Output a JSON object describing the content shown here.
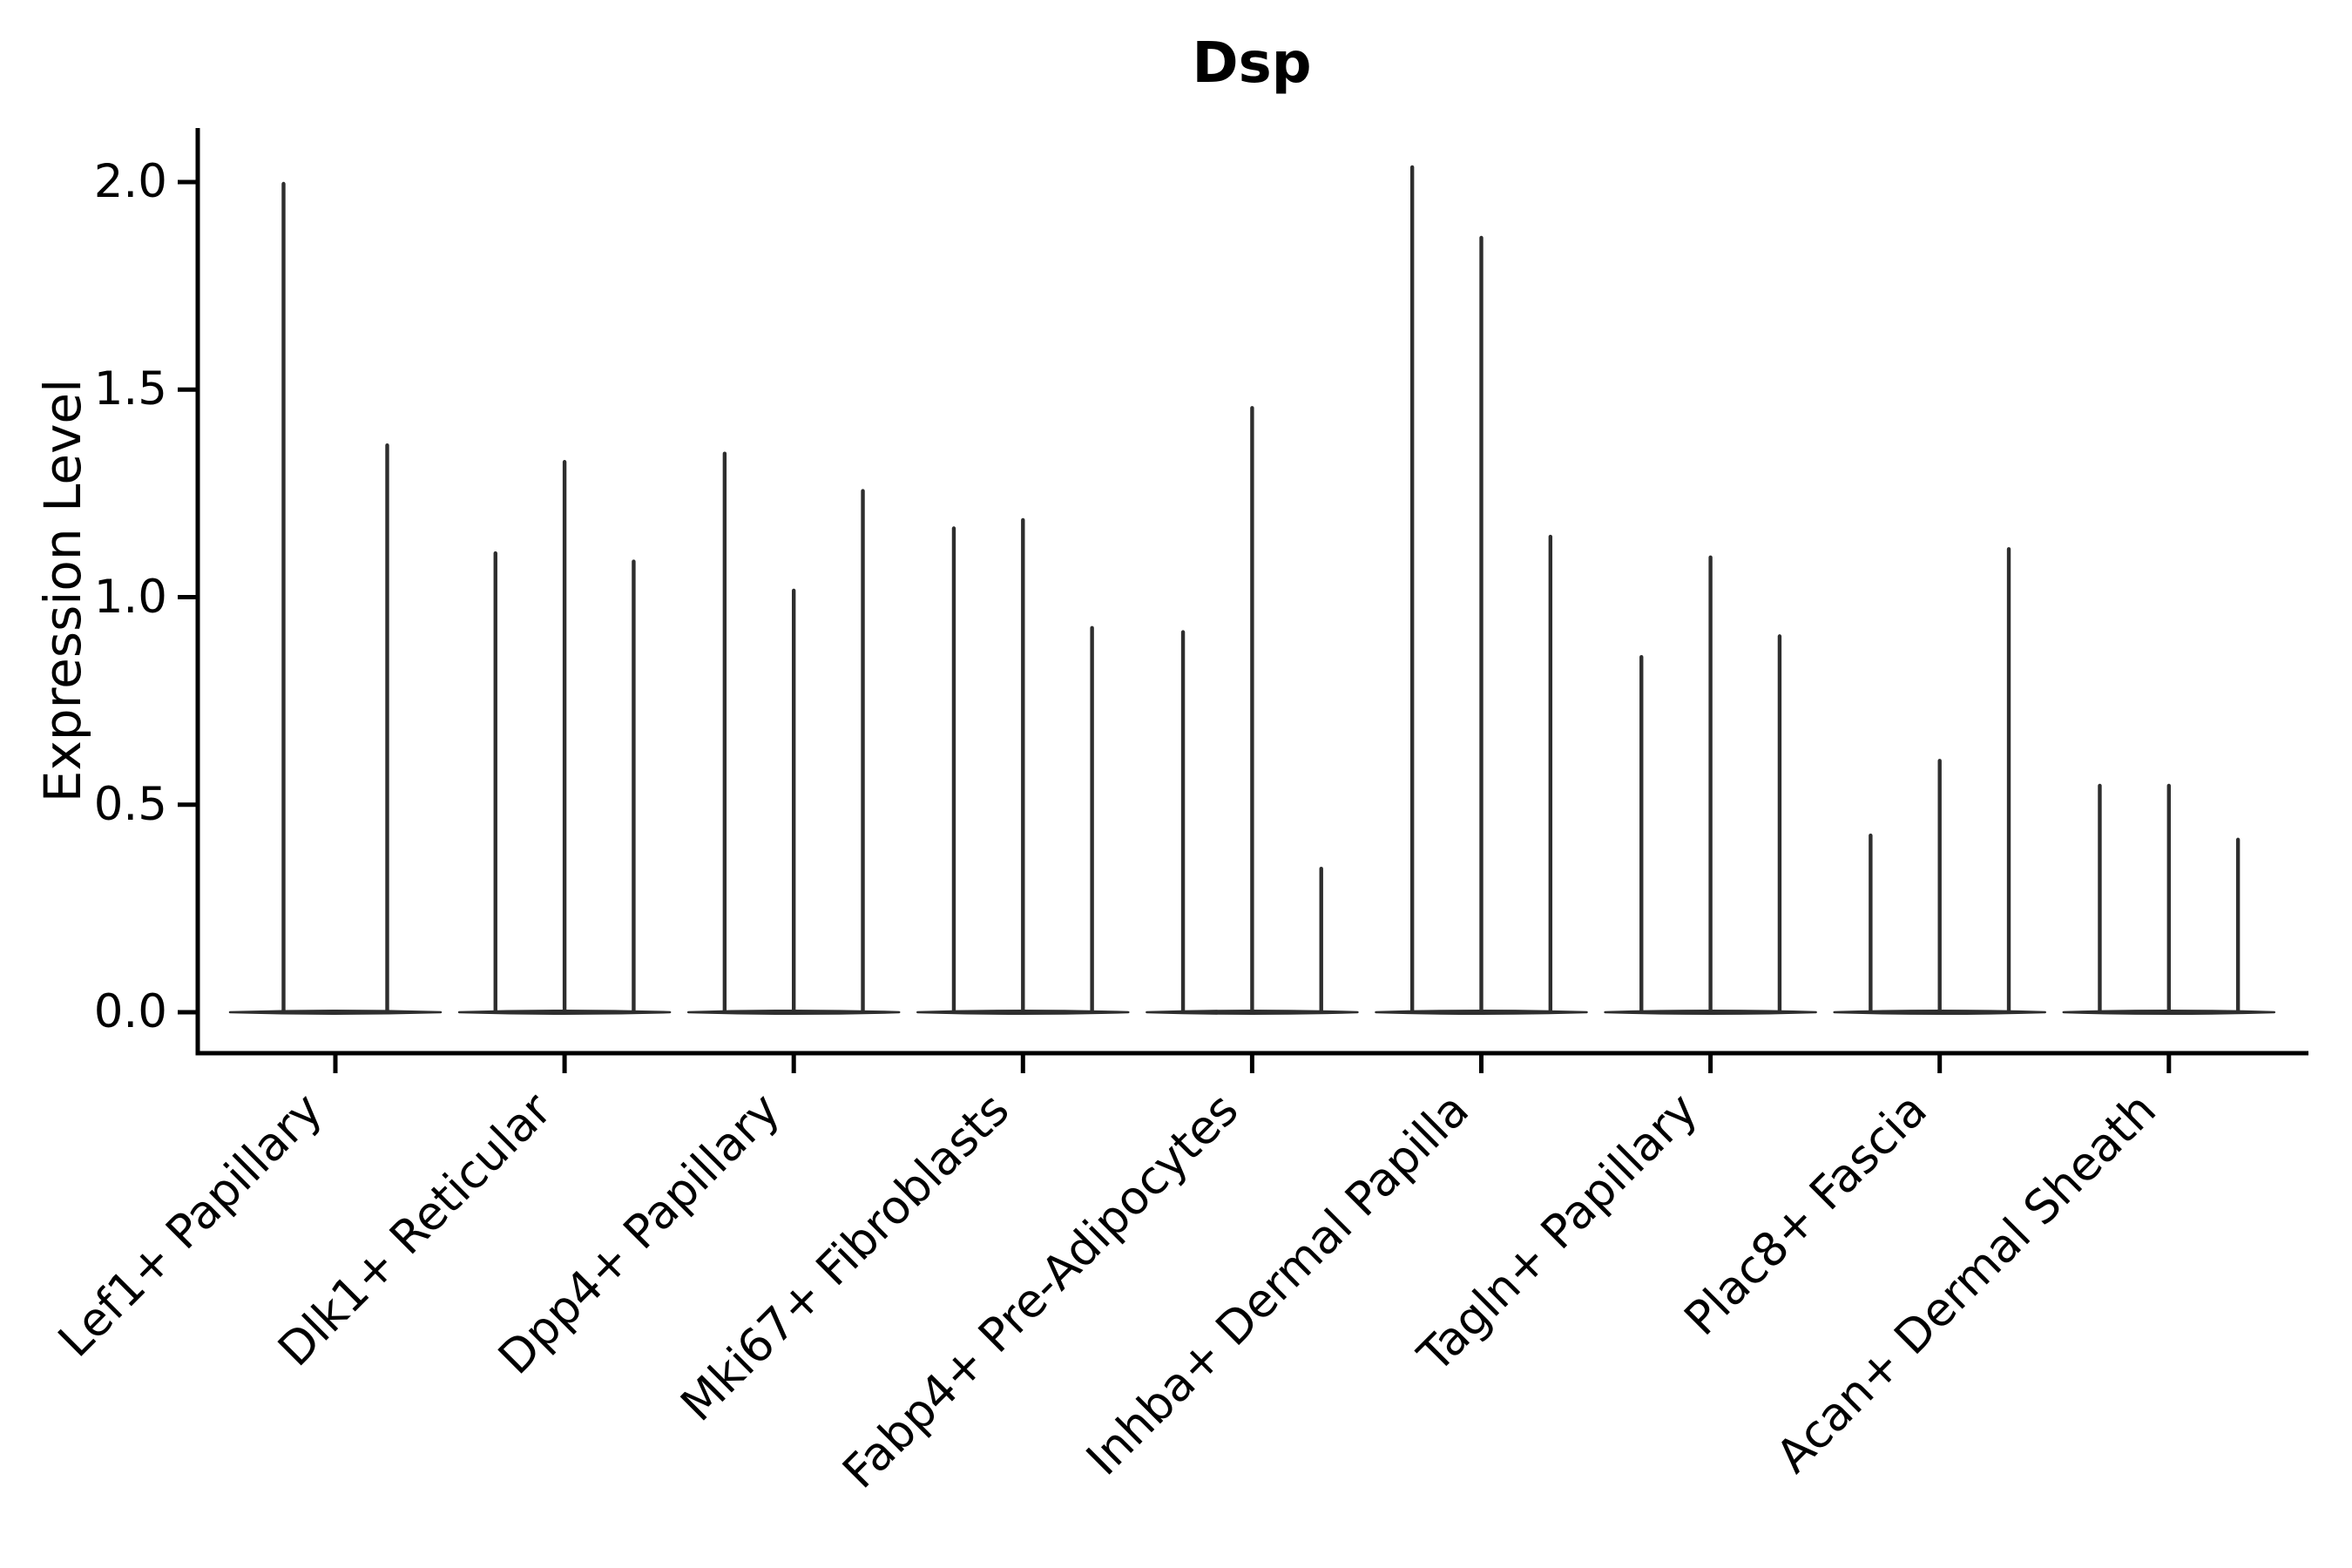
{
  "figure": {
    "title": "Dsp",
    "ylabel": "Expression Level"
  },
  "chart_data": {
    "type": "violin",
    "title": "Dsp",
    "xlabel": "",
    "ylabel": "Expression Level",
    "ylim": [
      -0.1,
      2.13
    ],
    "ytick_labels": [
      "0.0",
      "0.5",
      "1.0",
      "1.5",
      "2.0"
    ],
    "ytick_values": [
      0.0,
      0.5,
      1.0,
      1.5,
      2.0
    ],
    "grid": false,
    "legend_position": "none",
    "categories": [
      "Lef1+ Papillary",
      "Dlk1+ Reticular",
      "Dpp4+ Papillary",
      "Mki67+ Fibroblasts",
      "Fabp4+ Pre-Adipocytes",
      "Inhba+ Dermal Papilla",
      "Tagln+ Papillary",
      "Plac8+ Fascia",
      "Acan+ Dermal Sheath"
    ],
    "series": [
      {
        "name": "Lef1+ Papillary",
        "violin_max_values": [
          2.0,
          1.37
        ]
      },
      {
        "name": "Dlk1+ Reticular",
        "violin_max_values": [
          1.11,
          1.33,
          1.09
        ]
      },
      {
        "name": "Dpp4+ Papillary",
        "violin_max_values": [
          1.35,
          1.02,
          1.26
        ]
      },
      {
        "name": "Mki67+ Fibroblasts",
        "violin_max_values": [
          1.17,
          1.19,
          0.93
        ]
      },
      {
        "name": "Fabp4+ Pre-Adipocytes",
        "violin_max_values": [
          0.92,
          1.46,
          0.35
        ]
      },
      {
        "name": "Inhba+ Dermal Papilla",
        "violin_max_values": [
          2.04,
          1.87,
          1.15
        ]
      },
      {
        "name": "Tagln+ Papillary",
        "violin_max_values": [
          0.86,
          1.1,
          0.91
        ]
      },
      {
        "name": "Plac8+ Fascia",
        "violin_max_values": [
          0.43,
          0.61,
          1.12
        ]
      },
      {
        "name": "Acan+ Dermal Sheath",
        "violin_max_values": [
          0.55,
          0.55,
          0.42
        ]
      }
    ],
    "style": {
      "violin_color": "#2e2e2e",
      "axis_color": "#000000",
      "background_color": "#ffffff"
    }
  }
}
